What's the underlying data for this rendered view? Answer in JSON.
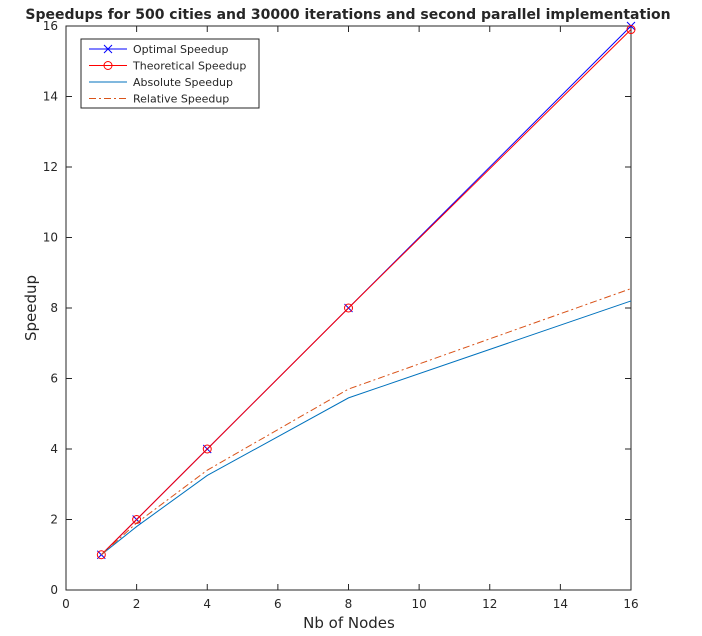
{
  "chart_data": {
    "type": "line",
    "title": "Speedups for 500 cities and 30000 iterations and second parallel implementation",
    "xlabel": "Nb of Nodes",
    "ylabel": "Speedup",
    "xlim": [
      0,
      16
    ],
    "ylim": [
      0,
      16
    ],
    "xticks": [
      "0",
      "2",
      "4",
      "6",
      "8",
      "10",
      "12",
      "14",
      "16"
    ],
    "yticks": [
      "0",
      "2",
      "4",
      "6",
      "8",
      "10",
      "12",
      "14",
      "16"
    ],
    "grid": false,
    "legend_position": "top-left",
    "x": [
      1,
      2,
      4,
      8,
      16
    ],
    "series": [
      {
        "name": "Optimal Speedup",
        "values": [
          1,
          2,
          4,
          8,
          16
        ],
        "color": "#0000ff",
        "dash": "solid",
        "marker": "x"
      },
      {
        "name": "Theoretical Speedup",
        "values": [
          1,
          2,
          4,
          8,
          15.9
        ],
        "color": "#ff0000",
        "dash": "solid",
        "marker": "o"
      },
      {
        "name": "Absolute Speedup",
        "values": [
          1,
          1.8,
          3.25,
          5.45,
          8.2
        ],
        "color": "#0072bd",
        "dash": "solid",
        "marker": "none"
      },
      {
        "name": "Relative Speedup",
        "values": [
          1,
          1.9,
          3.4,
          5.7,
          8.55
        ],
        "color": "#d95319",
        "dash": "dashdot",
        "marker": "none"
      }
    ]
  }
}
